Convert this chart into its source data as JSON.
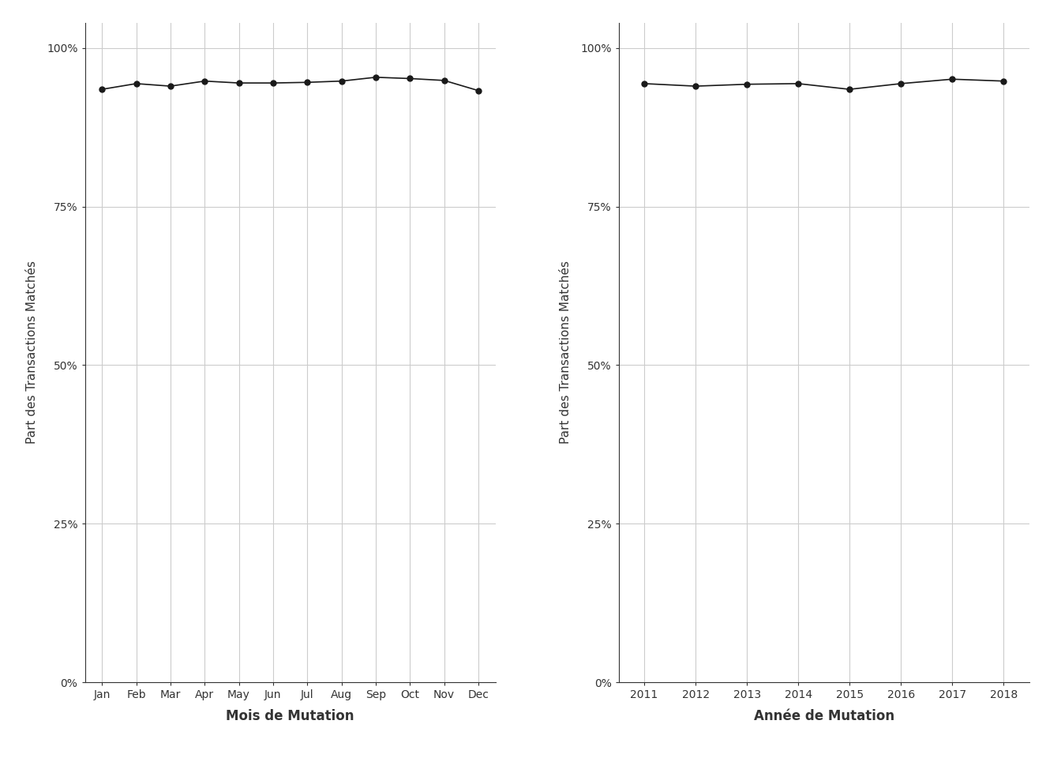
{
  "month_labels": [
    "Jan",
    "Feb",
    "Mar",
    "Apr",
    "May",
    "Jun",
    "Jul",
    "Aug",
    "Sep",
    "Oct",
    "Nov",
    "Dec"
  ],
  "month_values": [
    0.935,
    0.944,
    0.94,
    0.948,
    0.945,
    0.945,
    0.946,
    0.948,
    0.954,
    0.952,
    0.949,
    0.933
  ],
  "year_labels": [
    "2011",
    "2012",
    "2013",
    "2014",
    "2015",
    "2016",
    "2017",
    "2018"
  ],
  "year_values": [
    0.944,
    0.94,
    0.943,
    0.944,
    0.935,
    0.944,
    0.951,
    0.948
  ],
  "xlabel_month": "Mois de Mutation",
  "xlabel_year": "Année de Mutation",
  "ylabel": "Part des Transactions Matchés",
  "line_color": "#1a1a1a",
  "marker": "o",
  "marker_size": 5,
  "line_width": 1.2,
  "bg_color": "#ffffff",
  "plot_bg_color": "#ffffff",
  "grid_color": "#cccccc",
  "yticks": [
    0.0,
    0.25,
    0.5,
    0.75,
    1.0
  ],
  "ytick_labels": [
    "0%",
    "25%",
    "50%",
    "75%",
    "100%"
  ],
  "ylim": [
    0.0,
    1.04
  ],
  "spine_color": "#333333",
  "tick_label_color": "#333333",
  "tick_fontsize": 10,
  "xlabel_fontsize": 12,
  "ylabel_fontsize": 11
}
